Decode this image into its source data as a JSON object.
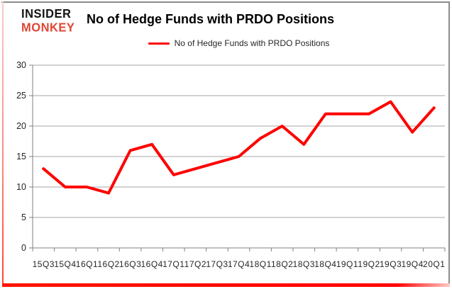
{
  "logo": {
    "line1": "INSIDER",
    "line2": "MONKEY"
  },
  "header": {
    "title": "No of Hedge Funds with PRDO Positions"
  },
  "legend": {
    "label": "No of Hedge Funds with PRDO Positions"
  },
  "colors": {
    "series_red": "#ff0000",
    "logo_red": "#df4634",
    "gridline": "#a6a6a6",
    "axis": "#808080",
    "tick_text": "#262626"
  },
  "chart_data": {
    "type": "line",
    "title": "No of Hedge Funds with PRDO Positions",
    "categories": [
      "15Q3",
      "15Q4",
      "16Q1",
      "16Q2",
      "16Q3",
      "16Q4",
      "17Q1",
      "17Q2",
      "17Q3",
      "17Q4",
      "18Q1",
      "18Q2",
      "18Q3",
      "18Q4",
      "19Q1",
      "19Q2",
      "19Q3",
      "19Q4",
      "20Q1"
    ],
    "series": [
      {
        "name": "No of Hedge Funds with PRDO Positions",
        "color": "#ff0000",
        "values": [
          13,
          10,
          10,
          9,
          16,
          17,
          12,
          13,
          14,
          15,
          18,
          20,
          17,
          22,
          22,
          22,
          24,
          19,
          23
        ]
      }
    ],
    "xlabel": "",
    "ylabel": "",
    "ylim": [
      0,
      30
    ],
    "yticks": [
      0,
      5,
      10,
      15,
      20,
      25,
      30
    ],
    "grid": true,
    "legend_position": "top"
  }
}
